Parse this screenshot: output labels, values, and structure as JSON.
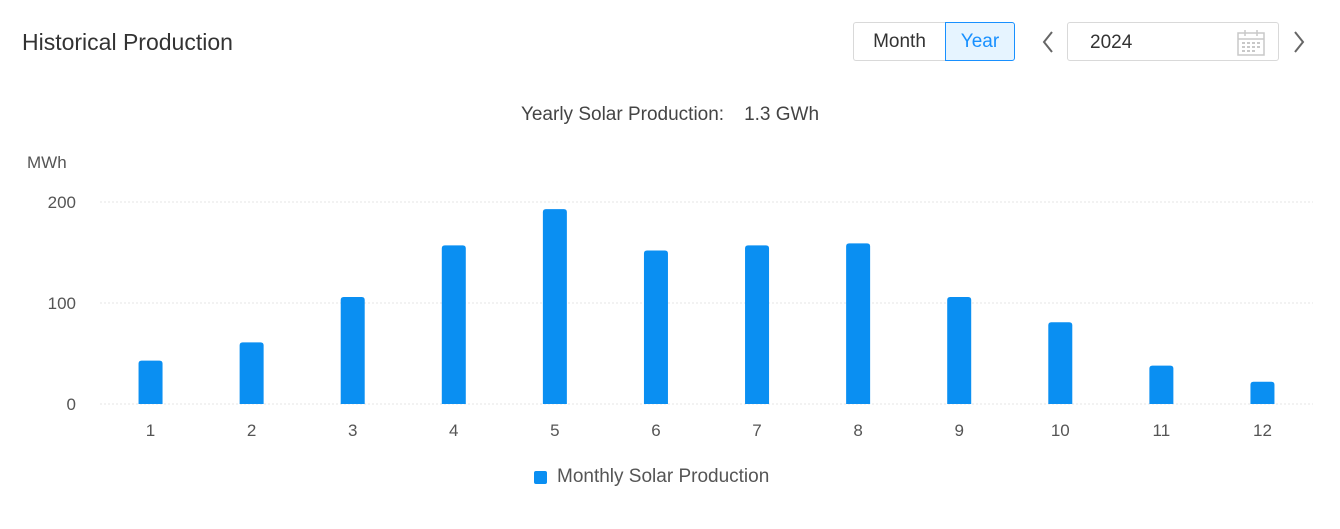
{
  "header": {
    "title": "Historical Production",
    "toggle": {
      "month_label": "Month",
      "year_label": "Year",
      "selected": "Year"
    },
    "date_picker": {
      "value": "2024",
      "prev_icon": "chevron-left-icon",
      "next_icon": "chevron-right-icon",
      "calendar_icon": "calendar-icon"
    }
  },
  "summary": {
    "label": "Yearly Solar Production:",
    "value": "1.3 GWh"
  },
  "colors": {
    "bar": "#0a8ff2",
    "accent": "#1890ff",
    "grid": "#e6e6e6"
  },
  "chart_data": {
    "type": "bar",
    "ylabel": "MWh",
    "xlabel": "",
    "categories": [
      "1",
      "2",
      "3",
      "4",
      "5",
      "6",
      "7",
      "8",
      "9",
      "10",
      "11",
      "12"
    ],
    "yticks": [
      0,
      100,
      200
    ],
    "ylim": [
      0,
      200
    ],
    "grid": true,
    "legend_position": "bottom-center",
    "series": [
      {
        "name": "Monthly Solar Production",
        "values": [
          43,
          61,
          106,
          157,
          193,
          152,
          157,
          159,
          106,
          81,
          38,
          22
        ]
      }
    ]
  }
}
